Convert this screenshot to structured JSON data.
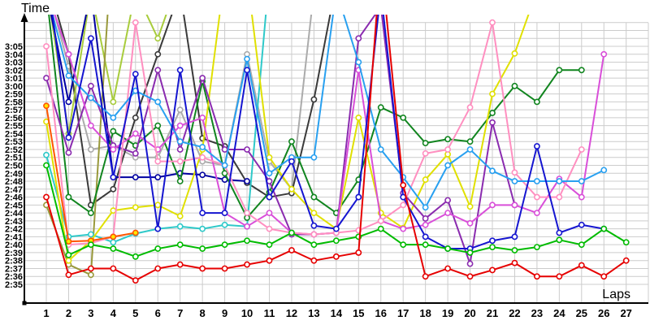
{
  "chart_data": {
    "type": "line",
    "title": "",
    "xlabel": "Laps",
    "ylabel": "Time",
    "x": [
      1,
      2,
      3,
      4,
      5,
      6,
      7,
      8,
      9,
      10,
      11,
      12,
      13,
      14,
      15,
      16,
      17,
      18,
      19,
      20,
      21,
      22,
      23,
      24,
      25,
      26,
      27
    ],
    "x_tick_labels": [
      "1",
      "2",
      "3",
      "4",
      "5",
      "6",
      "7",
      "8",
      "9",
      "10",
      "11",
      "12",
      "13",
      "14",
      "15",
      "16",
      "17",
      "18",
      "19",
      "20",
      "21",
      "22",
      "23",
      "24",
      "25",
      "26",
      "27"
    ],
    "y_tick_labels": [
      "2:35",
      "2:36",
      "2:37",
      "2:38",
      "2:39",
      "2:40",
      "2:41",
      "2:42",
      "2:43",
      "2:44",
      "2:45",
      "2:46",
      "2:47",
      "2:48",
      "2:49",
      "2:50",
      "2:51",
      "2:52",
      "2:53",
      "2:54",
      "2:55",
      "2:56",
      "2:57",
      "2:58",
      "2:59",
      "3:00",
      "3:01",
      "3:02",
      "3:03",
      "3:04",
      "3:05"
    ],
    "y_range_seconds": [
      155,
      185
    ],
    "grid": true,
    "legend": "none",
    "note": "values are lap times in seconds; values above 185 (3:05) run off the top of the plot; null = no lap recorded",
    "series": [
      {
        "name": "gray",
        "color": "#ababab",
        "marker_fill": "#ffffff",
        "values": [
          193,
          182.5,
          172,
          172.5,
          171,
          171,
          177,
          170.5,
          170,
          184,
          170.5,
          167,
          192,
          null,
          null,
          null,
          null,
          null,
          null,
          null,
          null,
          null,
          null,
          null,
          null,
          null,
          null
        ]
      },
      {
        "name": "black",
        "color": "#3a3a3a",
        "marker_fill": "#ffffff",
        "values": [
          194,
          184,
          165,
          167,
          176,
          184,
          192,
          173.4,
          172.4,
          167.8,
          166,
          166.5,
          178.3,
          193,
          null,
          null,
          null,
          null,
          null,
          null,
          null,
          null,
          null,
          null,
          null,
          null,
          null
        ]
      },
      {
        "name": "yellow-green",
        "color": "#a8cc3c",
        "marker_fill": "#ffffff",
        "values": [
          193,
          174,
          192,
          178,
          192,
          186,
          194,
          null,
          null,
          null,
          null,
          null,
          null,
          null,
          null,
          null,
          null,
          null,
          null,
          null,
          null,
          null,
          null,
          null,
          null,
          null,
          null
        ]
      },
      {
        "name": "olive",
        "color": "#99993b",
        "marker_fill": "#ffffff",
        "values": [
          165,
          157.5,
          156.2,
          200,
          null,
          null,
          null,
          null,
          null,
          null,
          null,
          null,
          null,
          null,
          null,
          null,
          null,
          null,
          null,
          null,
          null,
          null,
          null,
          null,
          null,
          null,
          null
        ]
      },
      {
        "name": "navy",
        "color": "#0000a0",
        "marker_fill": "#ffffff",
        "values": [
          192,
          178,
          192,
          168.5,
          168.5,
          168.5,
          169,
          168.8,
          168.2,
          168,
          null,
          null,
          null,
          null,
          null,
          null,
          null,
          null,
          null,
          null,
          null,
          null,
          null,
          null,
          null,
          null,
          null
        ]
      },
      {
        "name": "cyan",
        "color": "#2fc9c9",
        "marker_fill": "#ffffff",
        "values": [
          171.3,
          161,
          161.3,
          160.3,
          161.4,
          162,
          162.3,
          162,
          162.5,
          162.3,
          194,
          null,
          null,
          null,
          null,
          null,
          null,
          null,
          null,
          null,
          null,
          null,
          null,
          null,
          null,
          null,
          null
        ]
      },
      {
        "name": "dark-green",
        "color": "#11851f",
        "marker_fill": "#ffffff",
        "values": [
          192,
          166,
          164,
          174.3,
          172.5,
          175,
          168,
          180.6,
          169,
          163.4,
          166.6,
          173,
          166,
          164,
          168.2,
          177.3,
          176,
          172.8,
          173.3,
          173,
          176.6,
          180,
          178,
          182,
          182,
          null,
          null
        ]
      },
      {
        "name": "yellow",
        "color": "#e0e000",
        "marker_fill": "#ffffff",
        "values": [
          175.5,
          158,
          160.5,
          164.3,
          164.7,
          165,
          163.6,
          172,
          194,
          194,
          171,
          167,
          164,
          162,
          176,
          164,
          162.1,
          168.2,
          171.4,
          164.8,
          179,
          184.1,
          192,
          null,
          null,
          null,
          null
        ]
      },
      {
        "name": "purple",
        "color": "#8a2baf",
        "marker_fill": "#ffffff",
        "values": [
          181,
          171.6,
          180,
          172.5,
          171.5,
          182,
          172,
          181,
          172,
          172,
          168,
          161.3,
          161.3,
          161.5,
          186,
          190,
          166.5,
          163.3,
          165.6,
          157.6,
          175.4,
          165,
          null,
          null,
          null,
          null,
          null
        ]
      },
      {
        "name": "magenta",
        "color": "#d94fd9",
        "marker_fill": "#ffffff",
        "values": [
          192,
          184,
          175,
          172,
          174,
          172,
          175,
          176,
          164,
          162.3,
          164,
          161.5,
          161.3,
          161.5,
          182,
          163,
          162,
          162.5,
          164,
          162.7,
          165,
          165,
          164,
          168.3,
          166,
          184,
          null
        ]
      },
      {
        "name": "pink",
        "color": "#ff8fc0",
        "marker_fill": "#ffffff",
        "values": [
          185,
          160,
          160.2,
          161,
          188,
          170.5,
          170.5,
          171,
          170,
          164,
          162,
          161.5,
          161.3,
          161.5,
          161.8,
          163,
          165,
          171.5,
          172,
          177.3,
          188,
          169.1,
          166,
          166,
          172,
          null,
          null
        ]
      },
      {
        "name": "light-blue",
        "color": "#28a0f0",
        "marker_fill": "#ffffff",
        "values": [
          192,
          181.3,
          178.5,
          176,
          179.4,
          178,
          173,
          172.3,
          170,
          183.4,
          169,
          171,
          171,
          192,
          183,
          172,
          168.5,
          164.7,
          170,
          172,
          169.3,
          168,
          168,
          168,
          168,
          169.4,
          null
        ]
      },
      {
        "name": "blue",
        "color": "#1515d0",
        "marker_fill": "#ffffff",
        "values": [
          195,
          173.5,
          186,
          168.5,
          181.5,
          162,
          182,
          164,
          164,
          182,
          166,
          170.5,
          162.4,
          162,
          166,
          192,
          166,
          161,
          159.5,
          159.5,
          160.5,
          161,
          172.4,
          161.5,
          162.5,
          162,
          null
        ]
      },
      {
        "name": "orange",
        "color": "#ff5500",
        "marker_fill": "#ffe800",
        "values": [
          177.5,
          160.4,
          160.5,
          161,
          161.5,
          null,
          null,
          null,
          null,
          null,
          null,
          null,
          null,
          null,
          null,
          null,
          null,
          null,
          null,
          null,
          null,
          null,
          null,
          null,
          null,
          null,
          null
        ]
      },
      {
        "name": "green",
        "color": "#00bb00",
        "marker_fill": "#ffffff",
        "values": [
          170,
          158.7,
          160,
          159.5,
          158.5,
          159.5,
          160,
          159.5,
          160,
          160.5,
          160,
          161.5,
          160,
          160.5,
          161,
          162,
          160,
          160,
          159.5,
          159,
          159.7,
          159.3,
          159.7,
          160.6,
          160,
          162,
          160.3
        ]
      },
      {
        "name": "red",
        "color": "#e60000",
        "marker_fill": "#ffffff",
        "values": [
          166,
          156.2,
          157,
          157,
          155.5,
          157,
          157.5,
          157,
          157,
          157.5,
          158,
          159.3,
          158,
          158.5,
          159,
          196,
          167.5,
          156,
          157,
          156,
          156.8,
          157.7,
          156,
          156,
          157.4,
          156,
          158
        ]
      }
    ]
  }
}
